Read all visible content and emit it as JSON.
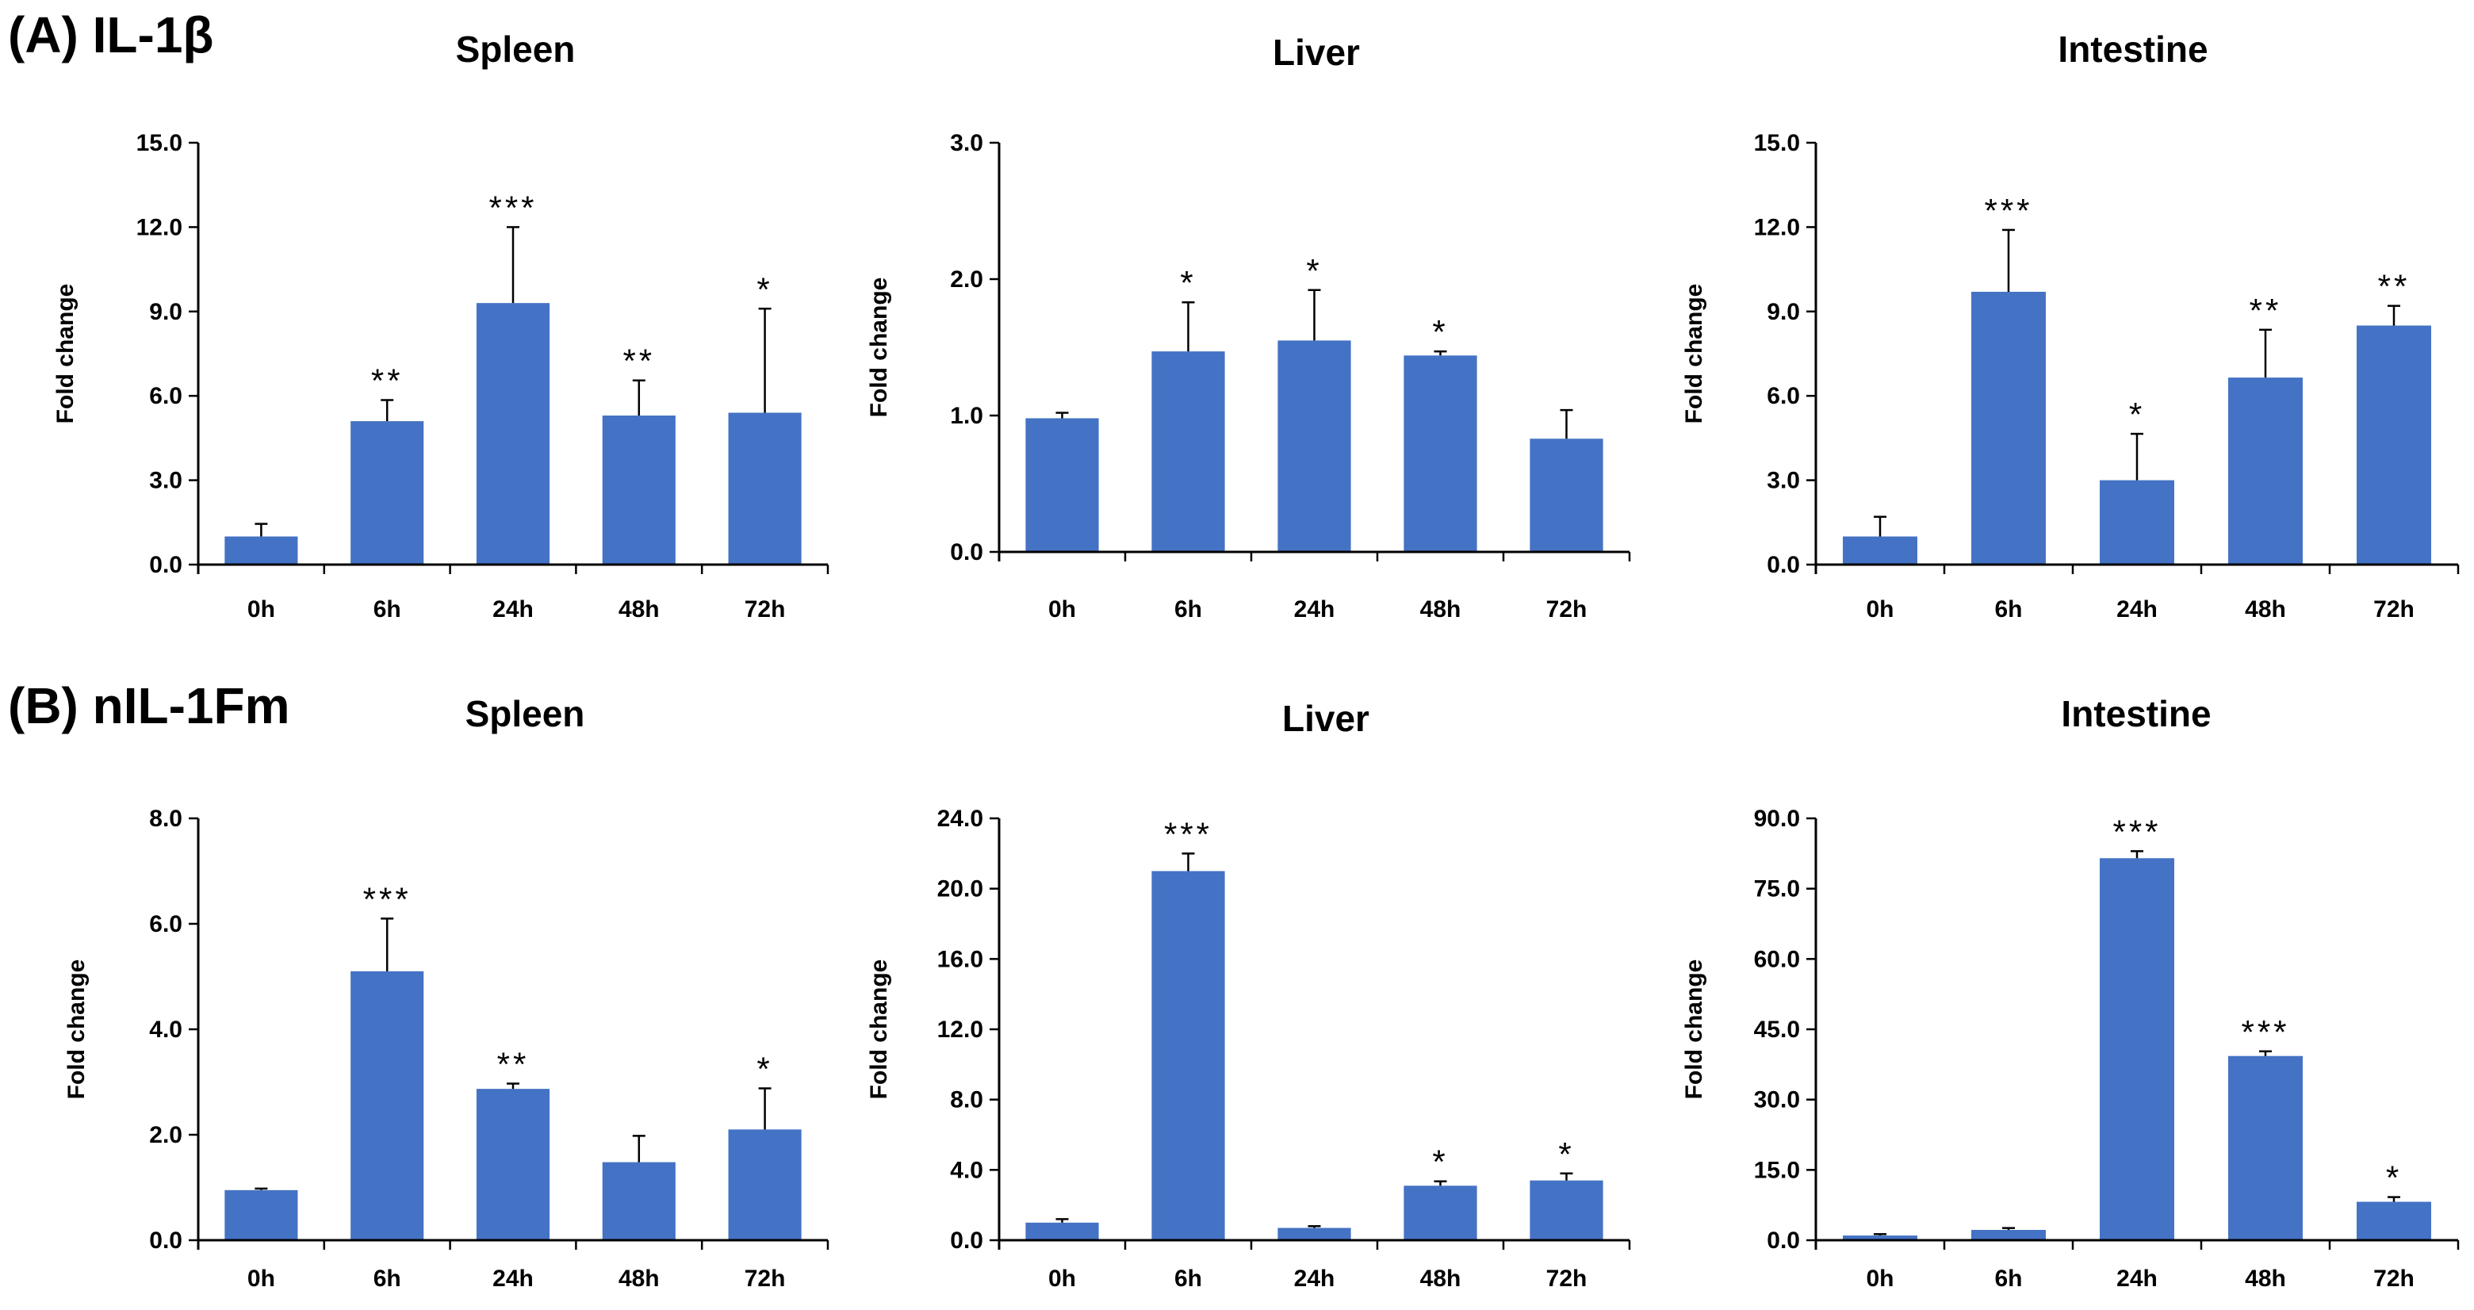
{
  "panels": [
    {
      "label": "(A) IL-1β",
      "charts": [
        0,
        1,
        2
      ]
    },
    {
      "label": "(B) nIL-1Fm",
      "charts": [
        3,
        4,
        5
      ]
    }
  ],
  "bar_color": "#4472C4",
  "chart_data": [
    {
      "type": "bar",
      "title": "Spleen",
      "ylabel": "Fold change",
      "xlabel": "",
      "categories": [
        "0h",
        "6h",
        "24h",
        "48h",
        "72h"
      ],
      "values": [
        1.0,
        5.1,
        9.3,
        5.3,
        5.4
      ],
      "errors": [
        0.45,
        0.75,
        2.7,
        1.25,
        3.7
      ],
      "significance": [
        "",
        "**",
        "***",
        "**",
        "*"
      ],
      "ylim": [
        0,
        15
      ],
      "yticks": [
        "0.0",
        "3.0",
        "6.0",
        "9.0",
        "12.0",
        "15.0"
      ]
    },
    {
      "type": "bar",
      "title": "Liver",
      "ylabel": "Fold change",
      "xlabel": "",
      "categories": [
        "0h",
        "6h",
        "24h",
        "48h",
        "72h"
      ],
      "values": [
        0.98,
        1.47,
        1.55,
        1.44,
        0.83
      ],
      "errors": [
        0.04,
        0.36,
        0.37,
        0.03,
        0.21
      ],
      "significance": [
        "",
        "*",
        "*",
        "*",
        ""
      ],
      "ylim": [
        0,
        3
      ],
      "yticks": [
        "0.0",
        "1.0",
        "2.0",
        "3.0"
      ]
    },
    {
      "type": "bar",
      "title": "Intestine",
      "ylabel": "Fold change",
      "xlabel": "",
      "categories": [
        "0h",
        "6h",
        "24h",
        "48h",
        "72h"
      ],
      "values": [
        1.0,
        9.7,
        3.0,
        6.65,
        8.5
      ],
      "errors": [
        0.7,
        2.2,
        1.65,
        1.7,
        0.7
      ],
      "significance": [
        "",
        "***",
        "*",
        "**",
        "**"
      ],
      "ylim": [
        0,
        15
      ],
      "yticks": [
        "0.0",
        "3.0",
        "6.0",
        "9.0",
        "12.0",
        "15.0"
      ]
    },
    {
      "type": "bar",
      "title": "Spleen",
      "ylabel": "Fold change",
      "xlabel": "",
      "categories": [
        "0h",
        "6h",
        "24h",
        "48h",
        "72h"
      ],
      "values": [
        0.95,
        5.1,
        2.87,
        1.48,
        2.1
      ],
      "errors": [
        0.03,
        1.0,
        0.1,
        0.5,
        0.78
      ],
      "significance": [
        "",
        "***",
        "**",
        "",
        "*"
      ],
      "ylim": [
        0,
        8
      ],
      "yticks": [
        "0.0",
        "2.0",
        "4.0",
        "6.0",
        "8.0"
      ]
    },
    {
      "type": "bar",
      "title": "Liver",
      "ylabel": "Fold change",
      "xlabel": "",
      "categories": [
        "0h",
        "6h",
        "24h",
        "48h",
        "72h"
      ],
      "values": [
        1.0,
        21.0,
        0.7,
        3.1,
        3.4
      ],
      "errors": [
        0.2,
        1.0,
        0.1,
        0.25,
        0.4
      ],
      "significance": [
        "",
        "***",
        "",
        "*",
        "*"
      ],
      "ylim": [
        0,
        24
      ],
      "yticks": [
        "0.0",
        "4.0",
        "8.0",
        "12.0",
        "16.0",
        "20.0",
        "24.0"
      ]
    },
    {
      "type": "bar",
      "title": "Intestine",
      "ylabel": "Fold change",
      "xlabel": "",
      "categories": [
        "0h",
        "6h",
        "24h",
        "48h",
        "72h"
      ],
      "values": [
        1.0,
        2.2,
        81.5,
        39.3,
        8.2
      ],
      "errors": [
        0.3,
        0.4,
        1.5,
        1.0,
        1.0
      ],
      "significance": [
        "",
        "",
        "***",
        "***",
        "*"
      ],
      "ylim": [
        0,
        90
      ],
      "yticks": [
        "0.0",
        "15.0",
        "30.0",
        "45.0",
        "60.0",
        "75.0",
        "90.0"
      ]
    }
  ]
}
